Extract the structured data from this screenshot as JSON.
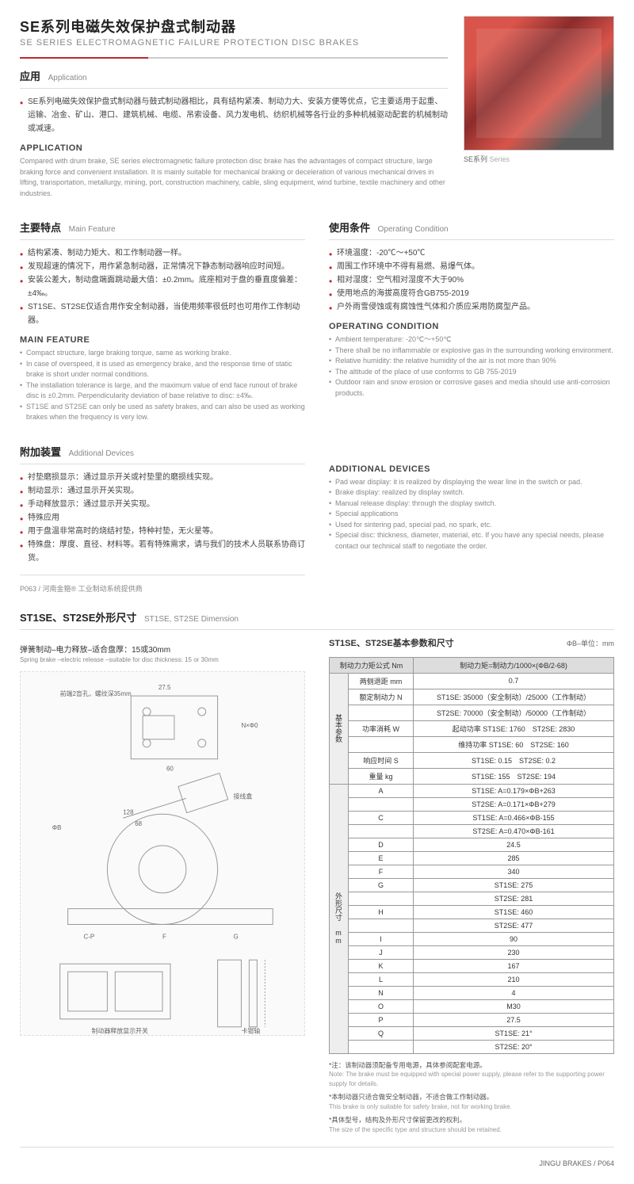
{
  "header": {
    "title_cn": "SE系列电磁失效保护盘式制动器",
    "title_en": "SE SERIES ELECTROMAGNETIC FAILURE PROTECTION DISC BRAKES"
  },
  "application": {
    "head_cn": "应用",
    "head_en": "Application",
    "bullets_cn": [
      "SE系列电磁失效保护盘式制动器与鼓式制动器相比，具有结构紧凑、制动力大、安装方便等优点，它主要适用于起重、运输、冶金、矿山、港口、建筑机械、电缆、吊索设备、风力发电机、纺织机械等各行业的多种机械驱动配套的机械制动或减速。"
    ],
    "en_title": "APPLICATION",
    "en_text": "Compared with drum brake, SE series electromagnetic failure protection disc brake has the advantages of compact structure, large braking force and convenient installation. It is mainly suitable for mechanical braking or deceleration of various mechanical drives in lifting, transportation, metallurgy, mining, port, construction machinery, cable, sling equipment, wind turbine, textile machinery and other industries."
  },
  "product_caption_cn": "SE系列",
  "product_caption_en": "Series",
  "main_feature": {
    "head_cn": "主要特点",
    "head_en": "Main Feature",
    "bullets_cn": [
      "结构紧凑、制动力矩大、和工作制动器一样。",
      "发现超速的情况下，用作紧急制动器，正常情况下静态制动器响应时间短。",
      "安装公差大，制动盘端面跳动最大值：±0.2mm。底座相对于盘的垂直度偏差：±4‰。",
      "ST1SE、ST2SE仅适合用作安全制动器，当使用频率很低时也可用作工作制动器。"
    ],
    "en_title": "MAIN FEATURE",
    "en_list": [
      "Compact structure, large braking torque, same as working brake.",
      "In case of overspeed, it is used as emergency brake, and the response time of static brake is short under normal conditions.",
      "The installation tolerance is large, and the maximum value of end face runout of brake disc is ±0.2mm. Perpendicularity deviation of base relative to disc: ±4‰.",
      "ST1SE and ST2SE can only be used as safety brakes, and can also be used as working brakes when the frequency is very low."
    ]
  },
  "operating": {
    "head_cn": "使用条件",
    "head_en": "Operating Condition",
    "bullets_cn": [
      "环境温度：-20℃～+50℃",
      "周围工作环境中不得有易燃、易爆气体。",
      "相对湿度：空气相对湿度不大于90%",
      "使用地点的海拔高度符合GB755-2019",
      "户外雨雪侵蚀或有腐蚀性气体和介质应采用防腐型产品。"
    ],
    "en_title": "OPERATING CONDITION",
    "en_list": [
      "Ambient temperature: -20℃～+50℃",
      "There shall be no inflammable or explosive gas in the surrounding working environment.",
      "Relative humidity: the relative humidity of the air is not more than 90%",
      "The altitude of the place of use conforms to GB 755-2019",
      "Outdoor rain and snow erosion or corrosive gases and media should use anti-corrosion products."
    ]
  },
  "additional": {
    "head_cn": "附加装置",
    "head_en": "Additional Devices",
    "bullets_cn": [
      "衬垫磨损显示：通过显示开关或衬垫里的磨损线实现。",
      "制动显示：通过显示开关实现。",
      "手动释放显示：通过显示开关实现。",
      "特殊应用",
      "用于盘温非常高时的烧结衬垫，特种衬垫，无火星等。",
      "特殊盘：厚度、直径、材料等。若有特殊需求，请与我们的技术人员联系协商订货。"
    ],
    "en_title": "ADDITIONAL DEVICES",
    "en_list": [
      "Pad wear display: it is realized by displaying the wear line in the switch or pad.",
      "Brake display: realized by display switch.",
      "Manual release display: through the display switch.",
      "Special applications",
      "Used for sintering pad, special pad, no spark, etc.",
      "Special disc: thickness, diameter, material, etc. If you have any special needs, please contact our technical staff to negotiate the order."
    ]
  },
  "page_left_footer": "P063 / 河南金箍® 工业制动系统提供商",
  "dimension": {
    "head_cn": "ST1SE、ST2SE外形尺寸",
    "head_en": "ST1SE, ST2SE Dimension",
    "spring_cn": "弹簧制动–电力释放–适合盘厚：15或30mm",
    "spring_en": "Spring brake –electric release –suitable for disc thickness: 15 or 30mm"
  },
  "param_table": {
    "title": "ST1SE、ST2SE基本参数和尺寸",
    "unit": "ΦB–单位：mm",
    "header_left": "制动力力矩公式 Nm",
    "header_right": "制动力矩=制动力/1000×(ΦB/2-68)",
    "group1_label": "基本参数",
    "group2_label": "外形尺寸 mm",
    "rows_basic": [
      {
        "l": "两侧退距 mm",
        "r": "0.7"
      },
      {
        "l": "额定制动力 N",
        "r": "ST1SE: 35000（安全制动）/25000（工作制动）"
      },
      {
        "l": "",
        "r": "ST2SE: 70000（安全制动）/50000（工作制动）"
      },
      {
        "l": "功率消耗 W",
        "r": "起动功率 ST1SE: 1760　ST2SE: 2830"
      },
      {
        "l": "",
        "r": "维持功率 ST1SE: 60　ST2SE: 160"
      },
      {
        "l": "响应时间 S",
        "r": "ST1SE: 0.15　ST2SE: 0.2"
      },
      {
        "l": "重量 kg",
        "r": "ST1SE: 155　ST2SE: 194"
      }
    ],
    "rows_dim": [
      {
        "l": "A",
        "r": "ST1SE: A=0.179×ΦB+263"
      },
      {
        "l": "",
        "r": "ST2SE: A=0.171×ΦB+279"
      },
      {
        "l": "C",
        "r": "ST1SE: A=0.466×ΦB-155"
      },
      {
        "l": "",
        "r": "ST2SE: A=0.470×ΦB-161"
      },
      {
        "l": "D",
        "r": "24.5"
      },
      {
        "l": "E",
        "r": "285"
      },
      {
        "l": "F",
        "r": "340"
      },
      {
        "l": "G",
        "r": "ST1SE: 275"
      },
      {
        "l": "",
        "r": "ST2SE: 281"
      },
      {
        "l": "H",
        "r": "ST1SE: 460"
      },
      {
        "l": "",
        "r": "ST2SE: 477"
      },
      {
        "l": "I",
        "r": "90"
      },
      {
        "l": "J",
        "r": "230"
      },
      {
        "l": "K",
        "r": "167"
      },
      {
        "l": "L",
        "r": "210"
      },
      {
        "l": "N",
        "r": "4"
      },
      {
        "l": "O",
        "r": "M30"
      },
      {
        "l": "P",
        "r": "27.5"
      },
      {
        "l": "Q",
        "r": "ST1SE: 21°"
      },
      {
        "l": "",
        "r": "ST2SE: 20°"
      }
    ]
  },
  "notes": [
    {
      "cn": "*注：该制动器须配备专用电源，具体参阅配套电源。",
      "en": "Note: The brake must be equipped with special power supply, please refer to the supporting power supply for details."
    },
    {
      "cn": "*本制动器只适合做安全制动器，不适合做工作制动器。",
      "en": "This brake is only suitable for safety brake, not for working brake."
    },
    {
      "cn": "*具体型号，结构及外形尺寸保留更改的权利。",
      "en": "The size of the specific type and structure should be retained."
    }
  ],
  "page_right_footer": "JINGU BRAKES / P064",
  "drawing_labels": {
    "a": "前端2盲孔，螺纹深35mm",
    "b": "接线盒",
    "c": "制动器释放显示开关",
    "d": "卡钳轴"
  }
}
